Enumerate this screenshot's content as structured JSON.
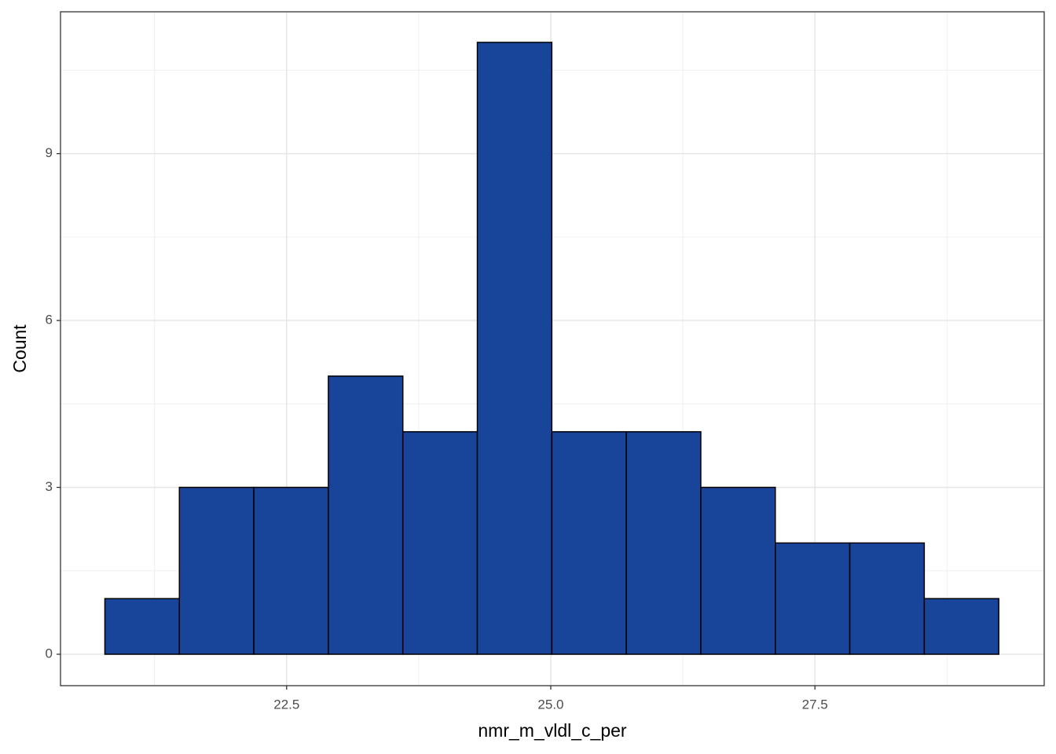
{
  "chart_data": {
    "type": "histogram",
    "x_label": "nmr_m_vldl_c_per",
    "y_label": "Count",
    "bins": [
      20.78,
      21.485,
      22.19,
      22.895,
      23.6,
      24.305,
      25.01,
      25.715,
      26.42,
      27.125,
      27.83,
      28.535,
      29.24
    ],
    "values": [
      1,
      3,
      3,
      5,
      4,
      11,
      4,
      4,
      3,
      2,
      2,
      1
    ],
    "color": "#18449a",
    "edge_color": "#000000",
    "xlim": [
      20.36,
      29.67
    ],
    "ylim": [
      -0.565,
      11.55
    ],
    "xticks": [
      {
        "value": 22.5,
        "label": "22.5"
      },
      {
        "value": 25,
        "label": "25.0"
      },
      {
        "value": 27.5,
        "label": "27.5"
      }
    ],
    "yticks": [
      0,
      3,
      6,
      9
    ],
    "grid": true
  }
}
